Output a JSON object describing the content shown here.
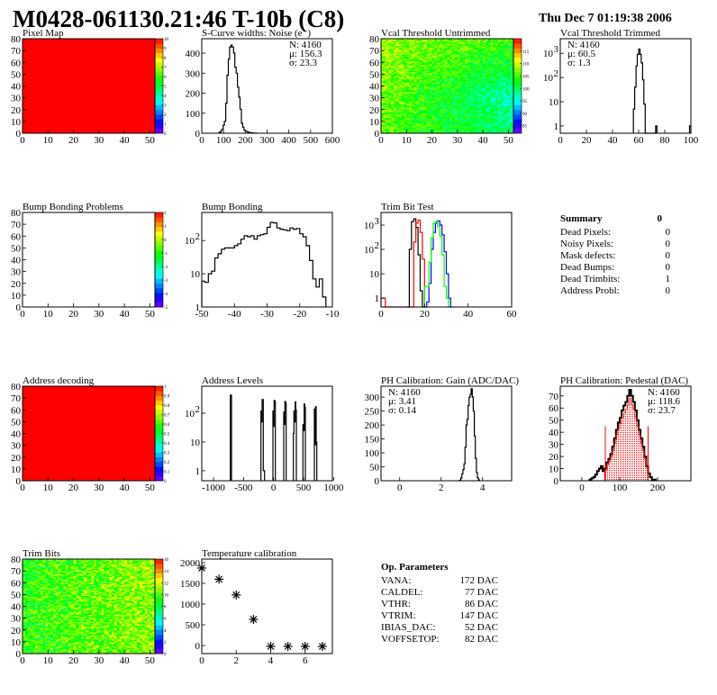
{
  "header": {
    "title": "M0428-061130.21:46 T-10b (C8)",
    "date": "Thu Dec  7 01:19:38 2006"
  },
  "chart_data": [
    {
      "id": "pixel-map",
      "type": "heatmap",
      "title": "Pixel Map",
      "xlim": [
        0,
        52
      ],
      "ylim": [
        0,
        80
      ],
      "xticks": [
        0,
        10,
        20,
        30,
        40,
        50
      ],
      "yticks": [
        0,
        10,
        20,
        30,
        40,
        50,
        60,
        70,
        80
      ],
      "zlim": [
        0,
        10
      ],
      "zticks": [
        0,
        1,
        2,
        3,
        4,
        5,
        6,
        7,
        8,
        9,
        10
      ],
      "fill": "uniform",
      "value": 10
    },
    {
      "id": "s-curve-noise",
      "type": "bar",
      "title": "S-Curve widths: Noise (e⁻)",
      "xlim": [
        0,
        600
      ],
      "ylim": [
        0,
        472
      ],
      "xticks": [
        0,
        100,
        200,
        300,
        400,
        500,
        600
      ],
      "yticks": [
        0,
        100,
        200,
        300,
        400
      ],
      "bin_width": 6,
      "series": [
        {
          "color": "#000000",
          "x0": 80,
          "values": [
            5,
            10,
            20,
            40,
            60,
            150,
            290,
            370,
            430,
            440,
            430,
            400,
            330,
            300,
            230,
            180,
            120,
            50,
            30,
            15,
            10,
            8,
            5,
            3,
            2,
            2,
            1,
            1,
            1
          ]
        }
      ],
      "stats": {
        "pos": "right",
        "lines": [
          "N: 4160",
          "μ: 156.3",
          "σ: 23.3"
        ]
      }
    },
    {
      "id": "vcal-threshold-untrimmed",
      "type": "heatmap",
      "title": "Vcal Threshold Untrimmed",
      "xlim": [
        0,
        52
      ],
      "ylim": [
        0,
        80
      ],
      "xticks": [
        0,
        10,
        20,
        30,
        40,
        50
      ],
      "yticks": [
        0,
        10,
        20,
        30,
        40,
        50,
        60,
        70,
        80
      ],
      "zlim": [
        82,
        120
      ],
      "zticks": [
        85,
        90,
        95,
        100,
        105,
        110,
        115
      ],
      "fill": "noise"
    },
    {
      "id": "vcal-threshold-trimmed",
      "type": "bar",
      "title": "Vcal Threshold Trimmed",
      "logy": true,
      "xlim": [
        0,
        100
      ],
      "ylim": [
        0.5,
        4000
      ],
      "xticks": [
        0,
        20,
        40,
        60,
        80,
        100
      ],
      "yticks": [
        1,
        10,
        100,
        1000
      ],
      "bin_width": 1,
      "series": [
        {
          "color": "#000000",
          "x0": 56,
          "values": [
            5,
            40,
            300,
            900,
            1500,
            900,
            400,
            80,
            8,
            0,
            0,
            0,
            0,
            0,
            0,
            0,
            0,
            1
          ]
        },
        {
          "color": "#000000",
          "x0": 99,
          "values": [
            1
          ]
        }
      ],
      "stats": {
        "pos": "left",
        "lines": [
          "N: 4160",
          "μ: 60.5",
          "σ:  1.3"
        ]
      }
    },
    {
      "id": "bump-bonding-problems",
      "type": "heatmap",
      "title": "Bump Bonding Problems",
      "xlim": [
        0,
        52
      ],
      "ylim": [
        0,
        80
      ],
      "xticks": [
        0,
        10,
        20,
        30,
        40,
        50
      ],
      "yticks": [
        0,
        10,
        20,
        30,
        40,
        50,
        60,
        70,
        80
      ],
      "zlim": [
        -5,
        2
      ],
      "zticks": [
        -5,
        -4,
        -3,
        -2,
        -1,
        0,
        1,
        2
      ],
      "fill": "empty"
    },
    {
      "id": "bump-bonding",
      "type": "bar",
      "title": "Bump Bonding",
      "logy": true,
      "xlim": [
        -50,
        -10
      ],
      "ylim": [
        1,
        700
      ],
      "xticks": [
        -50,
        -40,
        -30,
        -20,
        -10
      ],
      "yticks": [
        10,
        100
      ],
      "extra_yticks": [
        1
      ],
      "bin_width": 1,
      "series": [
        {
          "color": "#000000",
          "x0": -50,
          "values": [
            6,
            5.5,
            10,
            12,
            30,
            40,
            55,
            60,
            60,
            60,
            70,
            80,
            110,
            140,
            130,
            140,
            110,
            140,
            150,
            160,
            250,
            350,
            340,
            240,
            220,
            210,
            200,
            240,
            220,
            230,
            160,
            130,
            70,
            25,
            7,
            4,
            7,
            2
          ]
        }
      ]
    },
    {
      "id": "trim-bit-test",
      "type": "bar",
      "title": "Trim Bit Test",
      "logy": true,
      "xlim": [
        0,
        60
      ],
      "ylim": [
        0.43,
        3300
      ],
      "xticks": [
        0,
        20,
        40,
        60
      ],
      "yticks": [
        1,
        10,
        100,
        1000
      ],
      "bin_width": 1,
      "series": [
        {
          "color": "#000000",
          "x0": 12,
          "values": [
            0,
            100,
            1400,
            1800,
            800,
            60,
            2,
            0
          ]
        },
        {
          "color": "#ff0000",
          "x0": 0,
          "values": [
            1,
            1,
            0,
            0,
            0,
            0,
            0,
            0,
            0,
            0,
            0,
            0,
            0,
            0,
            0,
            200,
            1200,
            1600,
            500,
            40,
            0
          ]
        },
        {
          "color": "#0000ff",
          "x0": 20,
          "values": [
            0,
            0.7,
            4,
            100,
            500,
            1200,
            1500,
            1000,
            400,
            80,
            10,
            1,
            0
          ]
        },
        {
          "color": "#00ff00",
          "x0": 19,
          "values": [
            0,
            3,
            3,
            30,
            300,
            1200,
            1400,
            900,
            350,
            60,
            3,
            1,
            0
          ]
        }
      ]
    },
    {
      "id": "summary",
      "type": "table",
      "title": "Summary",
      "total": "0",
      "rows": [
        [
          "Dead Pixels:",
          "0"
        ],
        [
          "Noisy Pixels:",
          "0"
        ],
        [
          "Mask defects:",
          "0"
        ],
        [
          "Dead Bumps:",
          "0"
        ],
        [
          "Dead Trimbits:",
          "1"
        ],
        [
          "Address Probl:",
          "0"
        ]
      ]
    },
    {
      "id": "address-decoding",
      "type": "heatmap",
      "title": "Address decoding",
      "xlim": [
        0,
        52
      ],
      "ylim": [
        0,
        80
      ],
      "xticks": [
        0,
        10,
        20,
        30,
        40,
        50
      ],
      "yticks": [
        0,
        10,
        20,
        30,
        40,
        50,
        60,
        70,
        80
      ],
      "zlim": [
        0,
        1
      ],
      "zticks": [
        0,
        0.1,
        0.2,
        0.3,
        0.4,
        0.5,
        0.6,
        0.7,
        0.8,
        0.9,
        1
      ],
      "fill": "uniform",
      "value": 1
    },
    {
      "id": "address-levels",
      "type": "bar",
      "title": "Address Levels",
      "logy": true,
      "xlim": [
        -1195,
        980
      ],
      "ylim": [
        0.45,
        870
      ],
      "xticks": [
        -1000,
        -500,
        0,
        500,
        1000
      ],
      "yticks": [
        1,
        10,
        100
      ],
      "bin_width": 10,
      "series": [
        {
          "color": "#000000",
          "x0": -720,
          "values": [
            430,
            430
          ]
        },
        {
          "color": "#000000",
          "x0": -210,
          "values": [
            120,
            50,
            300,
            300,
            1,
            1
          ]
        },
        {
          "color": "#000000",
          "x0": -10,
          "values": [
            120,
            35,
            280,
            250
          ]
        },
        {
          "color": "#000000",
          "x0": 170,
          "values": [
            110,
            40,
            260,
            220
          ]
        },
        {
          "color": "#000000",
          "x0": 330,
          "values": [
            20,
            120,
            50,
            250,
            130
          ]
        },
        {
          "color": "#000000",
          "x0": 490,
          "values": [
            40,
            25,
            210,
            160
          ]
        },
        {
          "color": "#000000",
          "x0": 680,
          "values": [
            140,
            8,
            170,
            10
          ]
        }
      ]
    },
    {
      "id": "ph-calibration-gain",
      "type": "bar",
      "title": "PH Calibration: Gain (ADC/DAC)",
      "xlim": [
        -0.9,
        5.4
      ],
      "ylim": [
        0,
        339
      ],
      "xticks": [
        0,
        2,
        4
      ],
      "yticks": [
        0,
        50,
        100,
        150,
        200,
        250,
        300
      ],
      "bin_width": 0.05,
      "series": [
        {
          "color": "#000000",
          "x0": 2.9,
          "values": [
            2,
            10,
            25,
            40,
            60,
            120,
            200,
            220,
            270,
            300,
            310,
            330,
            300,
            250,
            160,
            80,
            30,
            10,
            3
          ]
        }
      ],
      "stats": {
        "pos": "left",
        "lines": [
          "N: 4160",
          "μ: 3.41",
          "σ: 0.14"
        ]
      }
    },
    {
      "id": "ph-calibration-pedestal",
      "type": "bar",
      "title": "PH Calibration: Pedestal (DAC)",
      "xlim": [
        -57,
        288
      ],
      "ylim": [
        0,
        78
      ],
      "xticks": [
        0,
        100,
        200
      ],
      "yticks": [
        0,
        10,
        20,
        30,
        40,
        50,
        60,
        70
      ],
      "bin_width": 5,
      "series": [
        {
          "color": "#000000",
          "x0": 20,
          "values": [
            1,
            2,
            3,
            5,
            8,
            10,
            12,
            8,
            10,
            15,
            18,
            22,
            28,
            35,
            42,
            48,
            52,
            58,
            62,
            65,
            70,
            75,
            70,
            65,
            58,
            50,
            42,
            35,
            28,
            20,
            12,
            6,
            3,
            1,
            1
          ]
        },
        {
          "color": "#ff0000",
          "fill": "dots",
          "x0": 60,
          "values": [
            9,
            13,
            16,
            20,
            25,
            31,
            38,
            43,
            47,
            52,
            56,
            59,
            63,
            68,
            63,
            59,
            52,
            45,
            38,
            31,
            25,
            18,
            11
          ]
        }
      ],
      "fit_range": [
        62,
        175
      ],
      "stats": {
        "pos": "right",
        "lines": [
          "N: 4160",
          "μ: 118.6",
          "σ: 23.7"
        ],
        "colors": [
          "#000000",
          "#ff0000",
          "#ff0000"
        ]
      }
    },
    {
      "id": "trim-bits",
      "type": "heatmap",
      "title": "Trim Bits",
      "xlim": [
        0,
        52
      ],
      "ylim": [
        0,
        80
      ],
      "xticks": [
        0,
        10,
        20,
        30,
        40,
        50
      ],
      "yticks": [
        0,
        10,
        20,
        30,
        40,
        50,
        60,
        70,
        80
      ],
      "zlim": [
        0,
        16
      ],
      "zticks": [
        0,
        2,
        4,
        6,
        8,
        10,
        12,
        14,
        16
      ],
      "fill": "noise"
    },
    {
      "id": "temperature-calibration",
      "type": "scatter",
      "title": "Temperature calibration",
      "xlim": [
        0,
        7.58
      ],
      "ylim": [
        -194,
        2086
      ],
      "xticks": [
        0,
        2,
        4,
        6
      ],
      "yticks": [
        0,
        500,
        1000,
        1500,
        2000
      ],
      "marker": "star",
      "x": [
        0,
        1,
        2,
        3,
        4,
        5,
        6,
        7
      ],
      "y": [
        1870,
        1600,
        1220,
        630,
        -20,
        -20,
        -20,
        -20
      ]
    },
    {
      "id": "op-parameters",
      "type": "table",
      "title": "Op. Parameters",
      "rows": [
        [
          "VANA:",
          "172 DAC"
        ],
        [
          "CALDEL:",
          "77 DAC"
        ],
        [
          "VTHR:",
          "86 DAC"
        ],
        [
          "VTRIM:",
          "147 DAC"
        ],
        [
          "IBIAS_DAC:",
          "52 DAC"
        ],
        [
          "VOFFSETOP:",
          "82 DAC"
        ]
      ]
    }
  ]
}
